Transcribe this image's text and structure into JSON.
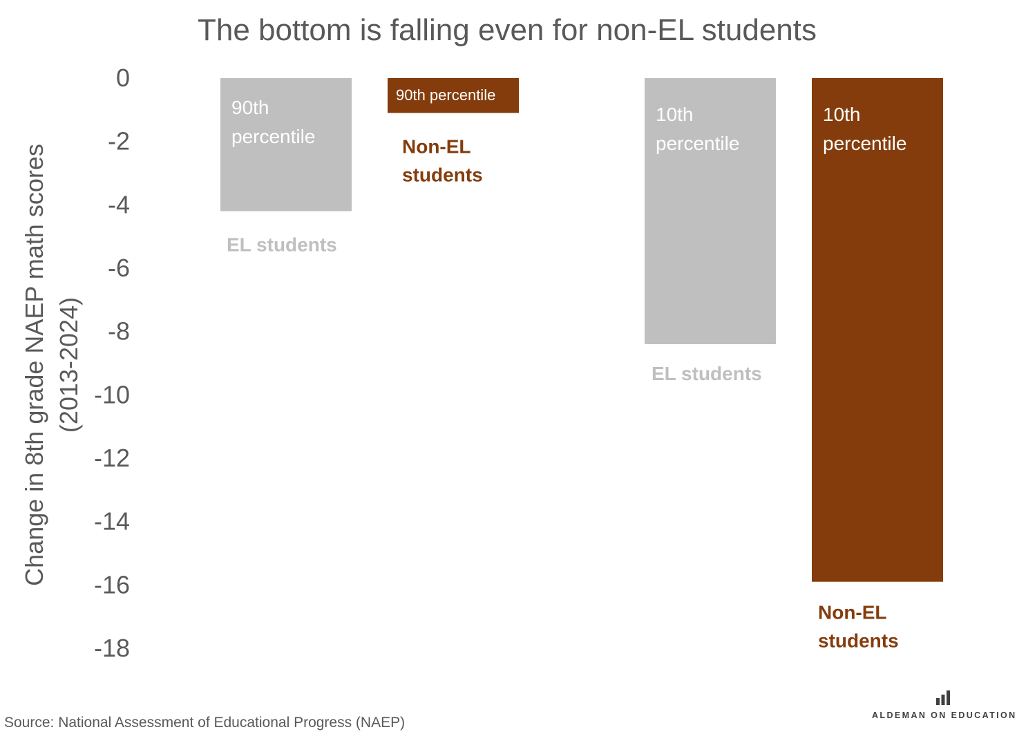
{
  "chart_data": {
    "type": "bar",
    "title": "The bottom is falling even for non-EL students",
    "ylabel": [
      "Change in 8th grade NAEP math scores",
      "(2013-2024)"
    ],
    "ylim": [
      -18,
      0
    ],
    "yticks": [
      0,
      -2,
      -4,
      -6,
      -8,
      -10,
      -12,
      -14,
      -16,
      -18
    ],
    "grid": false,
    "legend": "none",
    "bars": [
      {
        "percentile_label": [
          "90th",
          "percentile"
        ],
        "group_label": [
          "EL students"
        ],
        "value": -4.2,
        "color": "#bfbfbf",
        "label_color": "#ffffff"
      },
      {
        "percentile_label": [
          "90th percentile"
        ],
        "group_label": [
          "Non-EL",
          "students"
        ],
        "value": -1.1,
        "color": "#843c0c",
        "label_color": "#ffffff"
      },
      {
        "percentile_label": [
          "10th",
          "percentile"
        ],
        "group_label": [
          "EL students"
        ],
        "value": -8.4,
        "color": "#bfbfbf",
        "label_color": "#ffffff"
      },
      {
        "percentile_label": [
          "10th",
          "percentile"
        ],
        "group_label": [
          "Non-EL",
          "students"
        ],
        "value": -15.9,
        "color": "#843c0c",
        "label_color": "#ffffff"
      }
    ],
    "group_label_colors": {
      "el": "#bfbfbf",
      "non_el": "#843c0c"
    }
  },
  "footer": {
    "source": "Source: National Assessment of Educational Progress (NAEP)",
    "brand": "ALDEMAN ON EDUCATION",
    "brand_icon": "bar-chart-icon"
  }
}
